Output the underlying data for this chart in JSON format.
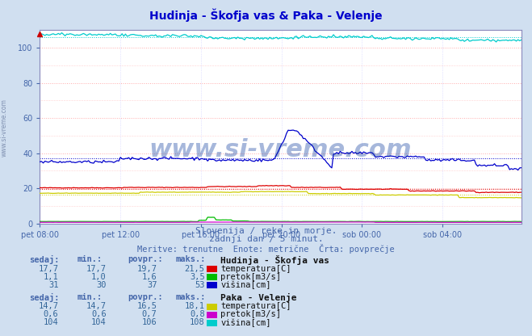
{
  "title": "Hudinja - Škofja vas & Paka - Velenje",
  "title_color": "#0000cc",
  "bg_color": "#d0dff0",
  "plot_bg_color": "#ffffff",
  "grid_color_h": "#ffaaaa",
  "grid_color_v": "#ccccff",
  "ylabel_max": 110,
  "ylabel_min": 0,
  "yticks": [
    0,
    20,
    40,
    60,
    80,
    100
  ],
  "xtick_labels": [
    "pet 08:00",
    "pet 12:00",
    "pet 16:00",
    "pet 20:00",
    "sob 00:00",
    "sob 04:00"
  ],
  "xtick_positions": [
    0,
    48,
    96,
    144,
    192,
    240
  ],
  "n_points": 288,
  "subtitle1": "Slovenija / reke in morje.",
  "subtitle2": "zadnji dan / 5 minut.",
  "subtitle3": "Meritve: trenutne  Enote: metrične  Črta: povprečje",
  "subtitle_color": "#4466aa",
  "watermark": "www.si-vreme.com",
  "station1_name": "Hudinja - Škofja vas",
  "station1_temp_color": "#dd0000",
  "station1_pretok_color": "#00bb00",
  "station1_visina_color": "#0000cc",
  "station1_temp_avg": 19.7,
  "station1_temp_min": 17.7,
  "station1_temp_max": 21.5,
  "station1_temp_sedaj": "17,7",
  "station1_pretok_avg": 1.6,
  "station1_pretok_min": 1.0,
  "station1_pretok_max": 3.5,
  "station1_pretok_sedaj": "1,1",
  "station1_visina_avg": 37,
  "station1_visina_min": 30,
  "station1_visina_max": 53,
  "station1_visina_sedaj": "31",
  "station2_name": "Paka - Velenje",
  "station2_temp_color": "#cccc00",
  "station2_pretok_color": "#cc00cc",
  "station2_visina_color": "#00cccc",
  "station2_temp_avg": 16.5,
  "station2_temp_min": 14.7,
  "station2_temp_max": 18.1,
  "station2_temp_sedaj": "14,7",
  "station2_pretok_avg": 0.7,
  "station2_pretok_min": 0.6,
  "station2_pretok_max": 0.8,
  "station2_pretok_sedaj": "0,6",
  "station2_visina_avg": 106,
  "station2_visina_min": 104,
  "station2_visina_max": 108,
  "station2_visina_sedaj": "104",
  "axis_color": "#8888bb",
  "tick_color": "#4466aa",
  "table_header_color": "#4466aa",
  "table_value_color": "#336699",
  "table_label_color": "#111111"
}
